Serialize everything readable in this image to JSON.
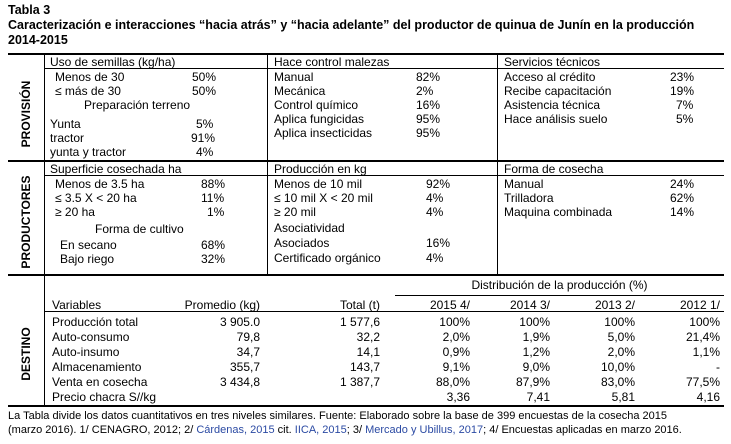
{
  "table_label": "Tabla 3",
  "title_line1": "Caracterización e interacciones “hacia atrás” y “hacia adelante” del productor de quinua de Junín en la producción",
  "title_line2": "2014-2015",
  "sections": {
    "provision": "PROVISIÓN",
    "productores": "PRODUCTORES",
    "destino": "DESTINO"
  },
  "provision": {
    "semillas": {
      "header": "Uso de semillas (kg/ha)",
      "rows": [
        {
          "label": "Menos de 30",
          "value": "50%"
        },
        {
          "label": "≤ más de 30",
          "value": "50%"
        }
      ]
    },
    "preparacion": {
      "header": "Preparación terreno",
      "rows": [
        {
          "label": "Yunta",
          "value": "5%"
        },
        {
          "label": "tractor",
          "value": "91%"
        },
        {
          "label": "yunta y tractor",
          "value": "4%"
        }
      ]
    },
    "malezas": {
      "header": "Hace control malezas",
      "rows": [
        {
          "label": "Manual",
          "value": "82%"
        },
        {
          "label": "Mecánica",
          "value": "2%"
        },
        {
          "label": "Control químico",
          "value": "16%"
        },
        {
          "label": "Aplica fungicidas",
          "value": "95%"
        },
        {
          "label": "Aplica insecticidas",
          "value": "95%"
        }
      ]
    },
    "servicios": {
      "header": "Servicios técnicos",
      "rows": [
        {
          "label": "Acceso al crédito",
          "value": "23%"
        },
        {
          "label": "Recibe capacitación",
          "value": "19%"
        },
        {
          "label": "Asistencia técnica",
          "value": "7%"
        },
        {
          "label": "Hace análisis suelo",
          "value": "5%"
        }
      ]
    }
  },
  "productores": {
    "superficie": {
      "header": "Superficie cosechada ha",
      "rows": [
        {
          "label": "Menos de 3.5 ha",
          "value": "88%"
        },
        {
          "label": "≤ 3.5  X < 20 ha",
          "value": "11%"
        },
        {
          "label": "≥ 20 ha",
          "value": "1%"
        }
      ]
    },
    "cultivo": {
      "header": "Forma de cultivo",
      "rows": [
        {
          "label": "En secano",
          "value": "68%"
        },
        {
          "label": "Bajo riego",
          "value": "32%"
        }
      ]
    },
    "produccion": {
      "header": "Producción en kg",
      "rows": [
        {
          "label": "Menos de 10 mil",
          "value": "92%"
        },
        {
          "label": "≤ 10 mil X < 20 mil",
          "value": "4%"
        },
        {
          "label": "≥ 20 mil",
          "value": "4%"
        }
      ]
    },
    "asociatividad": {
      "header": "Asociatividad",
      "rows": [
        {
          "label": "Asociados",
          "value": "16%"
        },
        {
          "label": "Certificado orgánico",
          "value": "4%"
        }
      ]
    },
    "cosecha": {
      "header": "Forma de cosecha",
      "rows": [
        {
          "label": "Manual",
          "value": "24%"
        },
        {
          "label": "Trilladora",
          "value": "62%"
        },
        {
          "label": "Maquina combinada",
          "value": "14%"
        }
      ]
    }
  },
  "destino": {
    "dist_header": "Distribución de la producción (%)",
    "columns": [
      "Variables",
      "Promedio (kg)",
      "Total (t)",
      "2015 4/",
      "2014 3/",
      "2013 2/",
      "2012 1/"
    ],
    "rows": [
      [
        "Producción total",
        "3 905.0",
        "1 577,6",
        "100%",
        "100%",
        "100%",
        "100%"
      ],
      [
        "Auto-consumo",
        "79,8",
        "32,2",
        "2,0%",
        "1,9%",
        "5,0%",
        "21,4%"
      ],
      [
        "Auto-insumo",
        "34,7",
        "14,1",
        "0,9%",
        "1,2%",
        "2,0%",
        "1,1%"
      ],
      [
        "Almacenamiento",
        "355,7",
        "143,7",
        "9,1%",
        "9,0%",
        "10,0%",
        "-"
      ],
      [
        "Venta en cosecha",
        "3 434,8",
        "1 387,7",
        "88,0%",
        "87,9%",
        "83,0%",
        "77,5%"
      ],
      [
        "Precio chacra S//kg",
        "",
        "",
        "3,36",
        "7,41",
        "5,81",
        "4,16"
      ]
    ]
  },
  "footnote": {
    "line1": "La Tabla divide los datos cuantitativos en tres niveles similares. Fuente: Elaborado sobre la base de 399 encuestas de la cosecha 2015",
    "line2_a": "(marzo 2016). 1/ CENAGRO, 2012; 2/ ",
    "line2_b": "Cárdenas, 2015",
    "line2_c": " cit. ",
    "line2_d": "IICA, 2015",
    "line2_e": "; 3/ ",
    "line2_f": "Mercado y Ubillus, 2017",
    "line2_g": "; 4/ Encuestas aplicadas en marzo 2016."
  }
}
